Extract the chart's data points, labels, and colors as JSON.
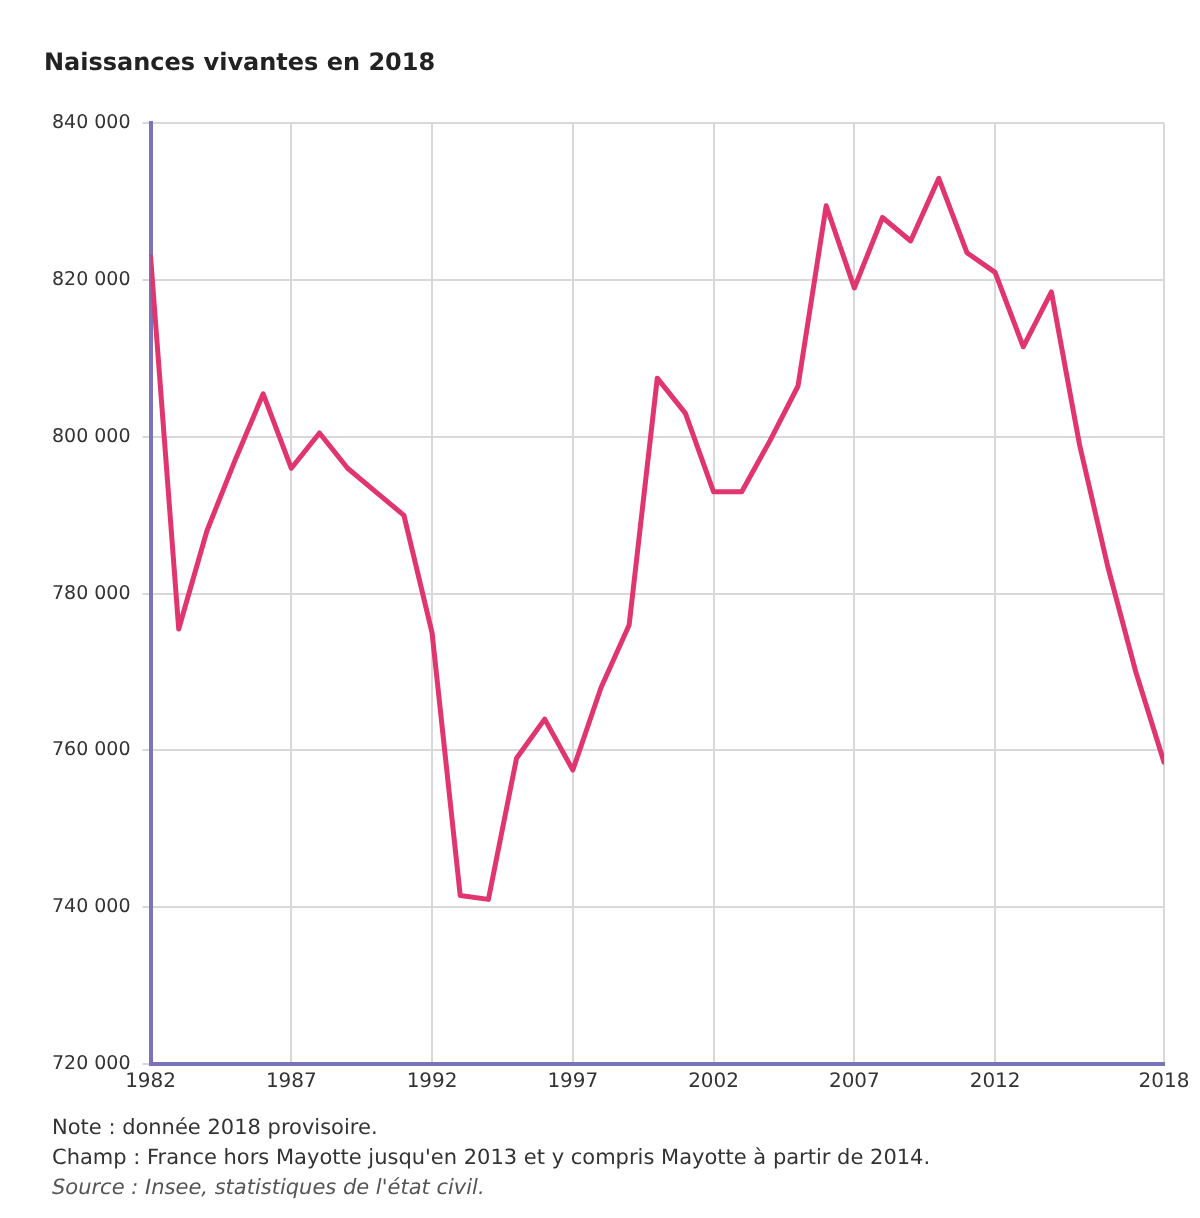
{
  "chart_data": {
    "type": "line",
    "title": "Naissances vivantes en 2018",
    "x": [
      1982,
      1983,
      1984,
      1985,
      1986,
      1987,
      1988,
      1989,
      1990,
      1991,
      1992,
      1993,
      1994,
      1995,
      1996,
      1997,
      1998,
      1999,
      2000,
      2001,
      2002,
      2003,
      2004,
      2005,
      2006,
      2007,
      2008,
      2009,
      2010,
      2011,
      2012,
      2013,
      2014,
      2015,
      2016,
      2017,
      2018
    ],
    "series": [
      {
        "color": "#e0356f",
        "values": [
          823000,
          775500,
          788000,
          797000,
          805500,
          796000,
          800500,
          796000,
          793000,
          790000,
          775000,
          741500,
          741000,
          759000,
          764000,
          757500,
          768000,
          776000,
          807500,
          803000,
          793000,
          793000,
          799500,
          806500,
          829500,
          819000,
          828000,
          825000,
          833000,
          823500,
          821000,
          811500,
          818500,
          799000,
          783500,
          770000,
          758500
        ]
      }
    ],
    "xlim": [
      1982,
      2018
    ],
    "xticks": [
      1982,
      1987,
      1992,
      1997,
      2002,
      2007,
      2012,
      2018
    ],
    "ylim": [
      720000,
      840000
    ],
    "yticks": [
      720000,
      740000,
      760000,
      780000,
      800000,
      820000,
      840000
    ],
    "grid": true,
    "legend": false,
    "marker": "none",
    "line_style": "solid",
    "annotations": [
      "Note : donnée 2018 provisoire.",
      "Champ : France hors Mayotte jusqu'en 2013 et y compris Mayotte à partir de 2014.",
      "Source : Insee, statistiques de l'état civil."
    ]
  }
}
